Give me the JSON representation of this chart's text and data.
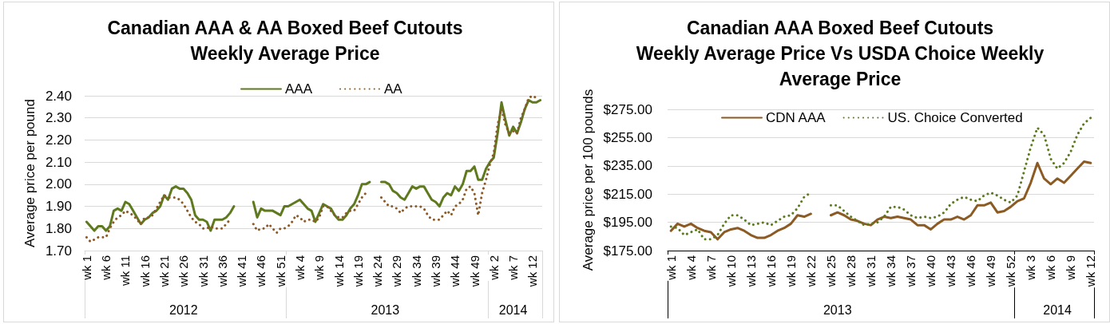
{
  "chart_data": [
    {
      "type": "line",
      "title": "Canadian AAA & AA Boxed Beef Cutouts\nWeekly Average Price",
      "ylabel": "Average price per pound",
      "categories": [
        "wk 1",
        null,
        null,
        null,
        null,
        "wk 6",
        null,
        null,
        null,
        null,
        "wk 11",
        null,
        null,
        null,
        null,
        "wk 16",
        null,
        null,
        null,
        null,
        "wk 21",
        null,
        null,
        null,
        null,
        "wk 26",
        null,
        null,
        null,
        null,
        "wk 31",
        null,
        null,
        null,
        null,
        "wk 36",
        null,
        null,
        null,
        null,
        "wk 41",
        null,
        null,
        null,
        null,
        "wk 46",
        null,
        null,
        null,
        null,
        "wk 51",
        null,
        null,
        null,
        null,
        "wk 4",
        null,
        null,
        null,
        null,
        "wk 9",
        null,
        null,
        null,
        null,
        "wk 14",
        null,
        null,
        null,
        null,
        "wk 19",
        null,
        null,
        null,
        null,
        "wk 24",
        null,
        null,
        null,
        null,
        "wk 29",
        null,
        null,
        null,
        null,
        "wk 34",
        null,
        null,
        null,
        null,
        "wk 39",
        null,
        null,
        null,
        null,
        "wk 44",
        null,
        null,
        null,
        null,
        "wk 49",
        null,
        null,
        null,
        null,
        "wk 2",
        null,
        null,
        null,
        null,
        "wk 7",
        null,
        null,
        null,
        null,
        "wk 12",
        null,
        null
      ],
      "series": [
        {
          "name": "AAA",
          "color": "#5f7a1e",
          "line_style": "solid",
          "values": [
            1.83,
            1.81,
            1.79,
            1.81,
            1.81,
            1.79,
            1.81,
            1.88,
            1.89,
            1.88,
            1.92,
            1.91,
            1.88,
            1.85,
            1.82,
            1.84,
            1.85,
            1.87,
            1.88,
            1.9,
            1.95,
            1.93,
            1.98,
            1.99,
            1.98,
            1.98,
            1.96,
            1.93,
            1.86,
            1.84,
            1.84,
            1.83,
            1.79,
            1.84,
            1.84,
            1.84,
            1.85,
            1.87,
            1.9,
            null,
            null,
            null,
            null,
            1.92,
            1.85,
            1.89,
            1.88,
            1.88,
            1.88,
            1.87,
            1.86,
            1.9,
            1.9,
            1.91,
            1.92,
            1.93,
            1.91,
            1.89,
            1.88,
            1.83,
            1.87,
            1.91,
            1.9,
            1.89,
            1.86,
            1.84,
            1.84,
            1.86,
            1.89,
            1.91,
            1.95,
            2.0,
            2.0,
            2.01,
            null,
            null,
            2.01,
            2.01,
            2.0,
            1.97,
            1.96,
            1.94,
            1.93,
            1.96,
            1.99,
            1.98,
            1.99,
            1.99,
            1.96,
            1.93,
            1.92,
            1.9,
            1.94,
            1.96,
            1.95,
            1.99,
            1.97,
            2.0,
            2.06,
            2.06,
            2.08,
            2.02,
            2.02,
            2.07,
            2.1,
            2.12,
            2.23,
            2.37,
            2.29,
            2.22,
            2.26,
            2.23,
            2.28,
            2.34,
            2.38,
            2.37,
            2.37,
            2.38
          ]
        },
        {
          "name": "AA",
          "color": "#8c5a28",
          "line_style": "dotted",
          "values": [
            1.76,
            1.74,
            1.75,
            1.76,
            1.76,
            1.76,
            1.8,
            1.83,
            1.85,
            1.86,
            1.88,
            1.87,
            1.86,
            1.84,
            1.82,
            1.85,
            1.85,
            1.86,
            1.89,
            1.92,
            1.95,
            1.94,
            1.94,
            1.94,
            1.93,
            1.91,
            1.88,
            1.85,
            1.83,
            1.82,
            1.8,
            1.8,
            1.81,
            1.8,
            1.8,
            1.8,
            1.82,
            1.84,
            null,
            null,
            null,
            null,
            null,
            1.82,
            1.79,
            1.8,
            1.8,
            1.82,
            1.8,
            1.78,
            1.8,
            1.8,
            1.81,
            1.83,
            1.86,
            1.85,
            1.83,
            1.84,
            1.84,
            1.83,
            1.85,
            1.9,
            1.9,
            1.88,
            1.86,
            1.85,
            1.85,
            1.87,
            1.88,
            1.88,
            1.91,
            1.94,
            1.96,
            null,
            null,
            null,
            1.94,
            1.92,
            1.9,
            1.9,
            1.89,
            1.87,
            1.89,
            1.9,
            1.9,
            1.9,
            1.9,
            1.89,
            1.86,
            1.84,
            1.84,
            1.84,
            1.86,
            1.88,
            1.86,
            1.9,
            1.91,
            1.93,
            1.98,
            1.99,
            1.96,
            1.86,
            1.96,
            2.02,
            2.09,
            2.14,
            2.27,
            2.34,
            2.27,
            2.23,
            2.24,
            2.23,
            2.3,
            2.34,
            2.39,
            2.4,
            2.39,
            null
          ]
        }
      ],
      "ylim": [
        1.7,
        2.4
      ],
      "yticks": [
        {
          "value": 1.7,
          "label": "1.70"
        },
        {
          "value": 1.8,
          "label": "1.80"
        },
        {
          "value": 1.9,
          "label": "1.90"
        },
        {
          "value": 2.0,
          "label": "2.00"
        },
        {
          "value": 2.1,
          "label": "2.10"
        },
        {
          "value": 2.2,
          "label": "2.20"
        },
        {
          "value": 2.3,
          "label": "2.30"
        },
        {
          "value": 2.4,
          "label": "2.40"
        }
      ],
      "grid": "y",
      "legend": "top",
      "annotations": [
        "2012",
        "2013",
        "2014"
      ]
    },
    {
      "type": "line",
      "title": "Canadian AAA Boxed Beef Cutouts\nWeekly Average Price Vs USDA Choice Weekly\nAverage Price",
      "ylabel": "Average price per 100 pounds",
      "categories": [
        "wk 1",
        null,
        null,
        "wk 4",
        null,
        null,
        "wk 7",
        null,
        null,
        "wk 10",
        null,
        null,
        "wk 13",
        null,
        null,
        "wk 16",
        null,
        null,
        "wk 19",
        null,
        null,
        "wk 22",
        null,
        null,
        "wk 25",
        null,
        null,
        "wk 28",
        null,
        null,
        "wk 31",
        null,
        null,
        "wk 34",
        null,
        null,
        "wk 37",
        null,
        null,
        "wk 40",
        null,
        null,
        "wk 43",
        null,
        null,
        "wk 46",
        null,
        null,
        "wk 49",
        null,
        null,
        "wk 52",
        null,
        null,
        "wk 3",
        null,
        null,
        "wk 6",
        null,
        null,
        "wk 9",
        null,
        null,
        "wk 12"
      ],
      "series": [
        {
          "name": "CDN AAA",
          "color": "#8c5b24",
          "line_style": "solid",
          "values": [
            189,
            194,
            192,
            194,
            191,
            189,
            188,
            183,
            188,
            190,
            191,
            189,
            186,
            184,
            184,
            186,
            189,
            191,
            194,
            200,
            199,
            201,
            null,
            null,
            200,
            202,
            200,
            197,
            196,
            194,
            193,
            197,
            199,
            198,
            199,
            198,
            197,
            193,
            193,
            190,
            194,
            197,
            197,
            199,
            197,
            200,
            207,
            207,
            209,
            202,
            203,
            206,
            210,
            212,
            223,
            237,
            226,
            222,
            226,
            223,
            228,
            233,
            238,
            237
          ]
        },
        {
          "name": "US. Choice Converted",
          "color": "#5b7a1e",
          "line_style": "dotted",
          "values": [
            192,
            191,
            186,
            188,
            190,
            183,
            183,
            186,
            194,
            200,
            200,
            197,
            193,
            194,
            195,
            193,
            196,
            199,
            200,
            205,
            213,
            216,
            null,
            null,
            207,
            207,
            203,
            199,
            196,
            193,
            194,
            195,
            199,
            206,
            206,
            204,
            200,
            198,
            199,
            198,
            199,
            202,
            208,
            211,
            213,
            211,
            210,
            214,
            216,
            214,
            211,
            209,
            214,
            231,
            248,
            262,
            257,
            240,
            233,
            237,
            245,
            257,
            265,
            269
          ]
        }
      ],
      "ylim": [
        175,
        275
      ],
      "yticks": [
        {
          "value": 175,
          "label": "$175.00"
        },
        {
          "value": 195,
          "label": "$195.00"
        },
        {
          "value": 215,
          "label": "$215.00"
        },
        {
          "value": 235,
          "label": "$235.00"
        },
        {
          "value": 255,
          "label": "$255.00"
        },
        {
          "value": 275,
          "label": "$275.00"
        }
      ],
      "grid": "y",
      "legend": "top",
      "annotations": [
        "2013",
        "2014"
      ]
    }
  ]
}
